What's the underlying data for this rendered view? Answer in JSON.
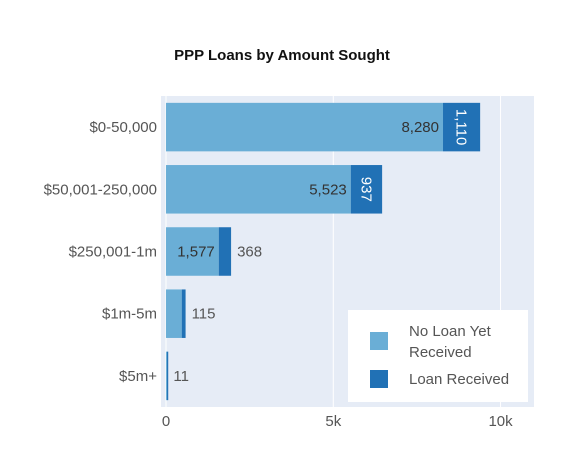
{
  "chart_data": {
    "type": "bar",
    "orientation": "horizontal",
    "stacked": true,
    "title": "PPP Loans by Amount Sought",
    "categories": [
      "$0-50,000",
      "$50,001-250,000",
      "$250,001-1m",
      "$1m-5m",
      "$5m+"
    ],
    "series": [
      {
        "name": "No Loan Yet Received",
        "color": "#6aaed6",
        "values": [
          8280,
          5523,
          1577,
          470,
          30
        ],
        "value_labels": [
          "8,280",
          "5,523",
          "1,577",
          "",
          ""
        ]
      },
      {
        "name": "Loan Received",
        "color": "#2171b5",
        "values": [
          1110,
          937,
          368,
          115,
          11
        ],
        "value_labels": [
          "1,110",
          "937",
          "368",
          "115",
          "11"
        ]
      }
    ],
    "xaxis": {
      "ticks": [
        0,
        5000,
        10000
      ],
      "tick_labels": [
        "0",
        "5k",
        "10k"
      ],
      "range": [
        -150,
        11000
      ],
      "grid": true
    },
    "legend": {
      "position": "bottom-right"
    },
    "colors": {
      "plot_background": "#e6ecf6",
      "grid": "#ffffff"
    }
  }
}
